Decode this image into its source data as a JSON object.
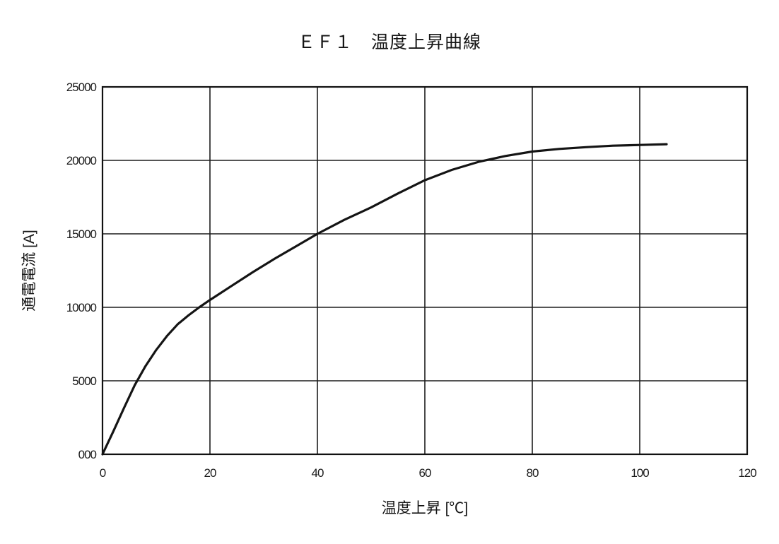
{
  "chart_data": {
    "type": "line",
    "title": "ＥＦ１　温度上昇曲線",
    "xlabel": "温度上昇 [℃]",
    "ylabel": "通電電流 [A]",
    "xlim": [
      0,
      120
    ],
    "ylim": [
      0,
      25000
    ],
    "grid": true,
    "legend": false,
    "x_ticks": {
      "values": [
        0,
        20,
        40,
        60,
        80,
        100,
        120
      ],
      "labels": [
        "0",
        "20",
        "40",
        "60",
        "80",
        "100",
        "120"
      ]
    },
    "y_ticks": {
      "values": [
        0,
        5000,
        10000,
        15000,
        20000,
        25000
      ],
      "labels": [
        "000",
        "5000",
        "10000",
        "15000",
        "20000",
        "25000"
      ]
    },
    "line_color": "#141414",
    "series": [
      {
        "name": "温度上昇曲線",
        "color": "#141414",
        "points": [
          [
            0,
            0
          ],
          [
            2,
            1550
          ],
          [
            4,
            3150
          ],
          [
            6,
            4700
          ],
          [
            8,
            6000
          ],
          [
            10,
            7100
          ],
          [
            12,
            8050
          ],
          [
            14,
            8850
          ],
          [
            16,
            9450
          ],
          [
            18,
            10000
          ],
          [
            20,
            10500
          ],
          [
            24,
            11450
          ],
          [
            28,
            12400
          ],
          [
            32,
            13300
          ],
          [
            36,
            14150
          ],
          [
            40,
            15000
          ],
          [
            45,
            15950
          ],
          [
            50,
            16800
          ],
          [
            55,
            17750
          ],
          [
            60,
            18650
          ],
          [
            65,
            19350
          ],
          [
            70,
            19900
          ],
          [
            75,
            20300
          ],
          [
            80,
            20600
          ],
          [
            85,
            20780
          ],
          [
            90,
            20900
          ],
          [
            95,
            21000
          ],
          [
            100,
            21050
          ],
          [
            105,
            21100
          ]
        ]
      }
    ]
  }
}
